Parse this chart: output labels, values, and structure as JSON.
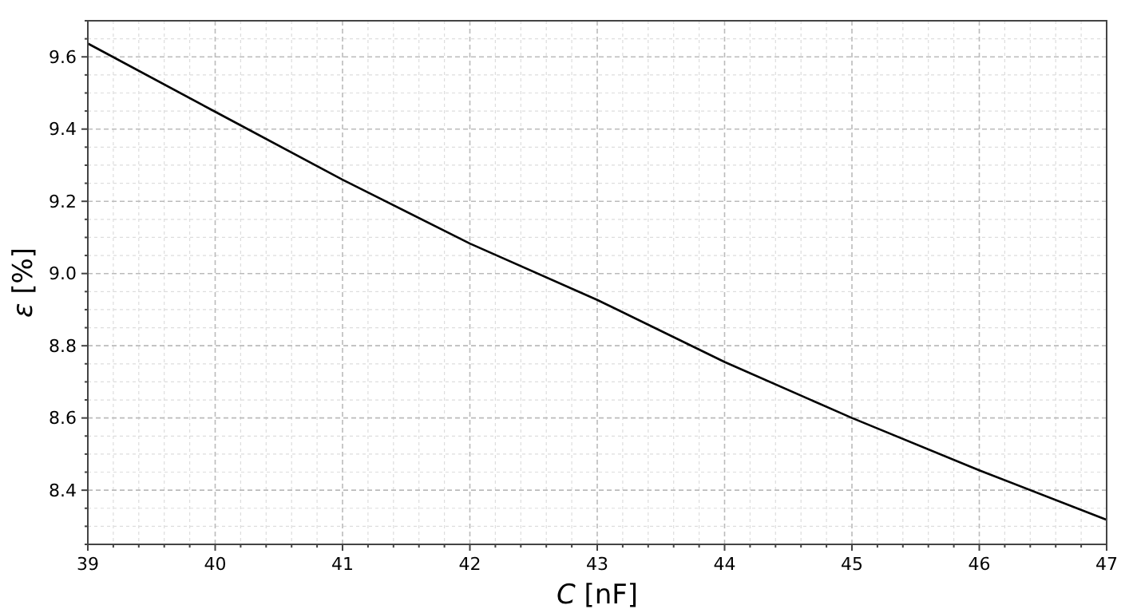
{
  "chart_data": {
    "type": "line",
    "xlabel": "C [nF]",
    "ylabel": "ε [%]",
    "x": [
      39,
      40,
      41,
      42,
      43,
      44,
      45,
      46,
      47
    ],
    "series": [
      {
        "color": "#000000",
        "values": [
          9.637,
          9.448,
          9.26,
          9.083,
          8.927,
          8.755,
          8.6,
          8.455,
          8.318
        ]
      }
    ],
    "xlim": [
      39,
      47
    ],
    "xticks": [
      39,
      40,
      41,
      42,
      43,
      44,
      45,
      46,
      47
    ],
    "ylim": [
      8.25,
      9.7
    ],
    "yticks": [
      {
        "value": 8.4,
        "label": "8.4"
      },
      {
        "value": 8.6,
        "label": "8.6"
      },
      {
        "value": 8.8,
        "label": "8.8"
      },
      {
        "value": 9.0,
        "label": "9.0"
      },
      {
        "value": 9.2,
        "label": "9.2"
      },
      {
        "value": 9.4,
        "label": "9.4"
      },
      {
        "value": 9.6,
        "label": "9.6"
      }
    ],
    "grid": true,
    "marker": "none",
    "line_style": "solid"
  }
}
